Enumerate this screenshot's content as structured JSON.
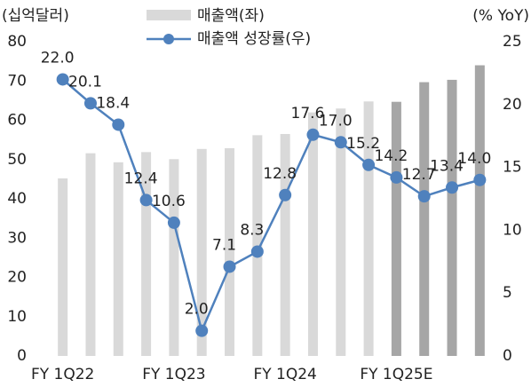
{
  "chart_data": {
    "type": "bar_line",
    "y_label": "(십억달러)",
    "y2_label": "(% YoY)",
    "categories": [
      "FY 1Q22",
      null,
      null,
      null,
      "FY 1Q23",
      null,
      null,
      null,
      "FY 1Q24",
      null,
      null,
      null,
      "FY 1Q25E",
      null,
      null,
      null
    ],
    "series": [
      {
        "name": "매출액(좌)",
        "type": "bar",
        "color": "#d9d9d9",
        "colors": [
          "#d9d9d9",
          "#d9d9d9",
          "#d9d9d9",
          "#d9d9d9",
          "#d9d9d9",
          "#d9d9d9",
          "#d9d9d9",
          "#d9d9d9",
          "#d9d9d9",
          "#d9d9d9",
          "#d9d9d9",
          "#d9d9d9",
          "#a6a6a6",
          "#a6a6a6",
          "#a6a6a6",
          "#a6a6a6"
        ],
        "values": [
          45.2,
          51.6,
          49.3,
          51.9,
          50.1,
          52.7,
          52.9,
          56.2,
          56.5,
          62.0,
          63.0,
          64.8,
          64.7,
          69.7,
          70.3,
          74.0
        ]
      },
      {
        "name": "매출액 성장률(우)",
        "type": "line",
        "axis": "y2",
        "color": "#4f81bd",
        "values": [
          22.0,
          20.1,
          18.4,
          12.4,
          10.6,
          2.0,
          7.1,
          8.3,
          12.8,
          17.6,
          17.0,
          15.2,
          14.2,
          12.7,
          13.4,
          14.0
        ],
        "value_labels": [
          "22.0",
          "20.1",
          "18.4",
          "12.4",
          "10.6",
          "2.0",
          "7.1",
          "8.3",
          "12.8",
          "17.6",
          "17.0",
          "15.2",
          "14.2",
          "12.7",
          "13.4",
          "14.0"
        ]
      }
    ],
    "ylim": [
      0,
      80
    ],
    "yticks": [
      0,
      10,
      20,
      30,
      40,
      50,
      60,
      70,
      80
    ],
    "y2lim": [
      0,
      25
    ],
    "y2ticks": [
      0,
      5,
      10,
      15,
      20,
      25
    ]
  }
}
